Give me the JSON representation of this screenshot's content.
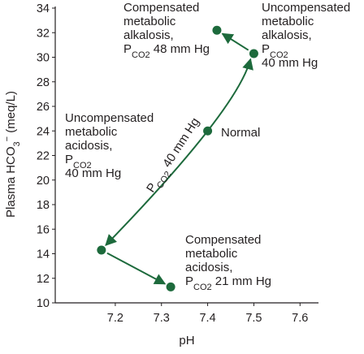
{
  "chart_data": {
    "type": "scatter",
    "x_label": "pH",
    "y_label": [
      "Plasma HCO",
      "3",
      "−",
      " (meq/L)"
    ],
    "x": [
      7.42,
      7.5,
      7.4,
      7.17,
      7.32
    ],
    "values": [
      32.2,
      30.3,
      24,
      14.3,
      11.3
    ],
    "color": "#1d6a3c",
    "xlim": [
      7.07,
      7.64
    ],
    "ylim": [
      10,
      34
    ],
    "xticks": [
      7.2,
      7.3,
      7.4,
      7.5,
      7.6
    ],
    "yticks": [
      10,
      12,
      14,
      16,
      18,
      20,
      22,
      24,
      26,
      28,
      30,
      32,
      34
    ],
    "annotations": [
      [
        "Compensated",
        "metabolic",
        "alkalosis,",
        [
          "P",
          "CO2",
          " 48 mm Hg"
        ]
      ],
      [
        "Uncompensated",
        "metabolic",
        "alkalosis,",
        [
          "P",
          "CO2",
          ""
        ],
        "40 mm Hg"
      ],
      [
        "Normal"
      ],
      [
        "Uncompensated",
        "metabolic",
        "acidosis,",
        [
          "P",
          "CO2",
          ""
        ],
        "40 mm Hg"
      ],
      [
        "Compensated",
        "metabolic",
        "acidosis,",
        [
          "P",
          "CO2",
          " 21 mm Hg"
        ]
      ]
    ],
    "curve_label": [
      "P",
      "CO2",
      " 40 mm Hg"
    ]
  }
}
